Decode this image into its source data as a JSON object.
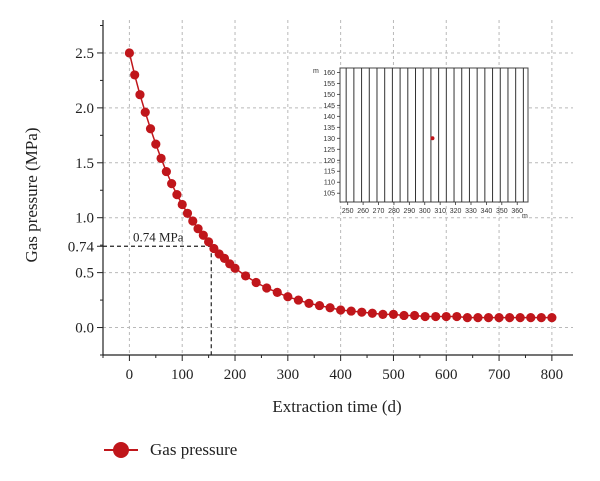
{
  "chart_data": [
    {
      "type": "line",
      "title": "",
      "xlabel": "Extraction time (d)",
      "ylabel": "Gas pressure (MPa)",
      "xlim": [
        -50,
        840
      ],
      "ylim": [
        -0.25,
        2.8
      ],
      "xticks": [
        0,
        100,
        200,
        300,
        400,
        500,
        600,
        700,
        800
      ],
      "yticks": [
        0.0,
        0.5,
        0.74,
        1.0,
        1.5,
        2.0,
        2.5
      ],
      "ytick_labels": [
        "0.0",
        "0.5",
        "0.74",
        "1.0",
        "1.5",
        "2.0",
        "2.5"
      ],
      "grid": true,
      "legend_position": "bottom-left",
      "series": [
        {
          "name": "Gas pressure",
          "color": "#c0161b",
          "marker": "circle",
          "x": [
            0,
            10,
            20,
            30,
            40,
            50,
            60,
            70,
            80,
            90,
            100,
            110,
            120,
            130,
            140,
            150,
            160,
            170,
            180,
            190,
            200,
            220,
            240,
            260,
            280,
            300,
            320,
            340,
            360,
            380,
            400,
            420,
            440,
            460,
            480,
            500,
            520,
            540,
            560,
            580,
            600,
            620,
            640,
            660,
            680,
            700,
            720,
            740,
            760,
            780,
            800
          ],
          "y": [
            2.5,
            2.3,
            2.12,
            1.96,
            1.81,
            1.67,
            1.54,
            1.42,
            1.31,
            1.21,
            1.12,
            1.04,
            0.97,
            0.9,
            0.84,
            0.78,
            0.72,
            0.67,
            0.63,
            0.58,
            0.54,
            0.47,
            0.41,
            0.36,
            0.32,
            0.28,
            0.25,
            0.22,
            0.2,
            0.18,
            0.16,
            0.15,
            0.14,
            0.13,
            0.12,
            0.12,
            0.11,
            0.11,
            0.1,
            0.1,
            0.1,
            0.1,
            0.09,
            0.09,
            0.09,
            0.09,
            0.09,
            0.09,
            0.09,
            0.09,
            0.09
          ]
        }
      ],
      "annotations": [
        {
          "text": "0.74 MPa",
          "x": 155,
          "y": 0.74
        }
      ]
    },
    {
      "type": "scatter",
      "title": "",
      "xlabel": "m",
      "ylabel": "m",
      "xlim": [
        245,
        367
      ],
      "ylim": [
        101,
        162
      ],
      "xticks": [
        250,
        260,
        270,
        280,
        290,
        300,
        310,
        320,
        330,
        340,
        350,
        360
      ],
      "yticks": [
        105,
        110,
        115,
        120,
        125,
        130,
        135,
        140,
        145,
        150,
        155,
        160
      ],
      "vertical_lines_x": [
        249,
        254,
        259,
        264,
        269,
        274,
        279,
        284,
        289,
        294,
        299,
        304,
        309,
        314,
        319,
        324,
        329,
        334,
        339,
        344,
        349,
        354,
        359,
        364
      ],
      "grid": false,
      "point": {
        "x": 305,
        "y": 130,
        "color": "#c0161b"
      }
    }
  ]
}
